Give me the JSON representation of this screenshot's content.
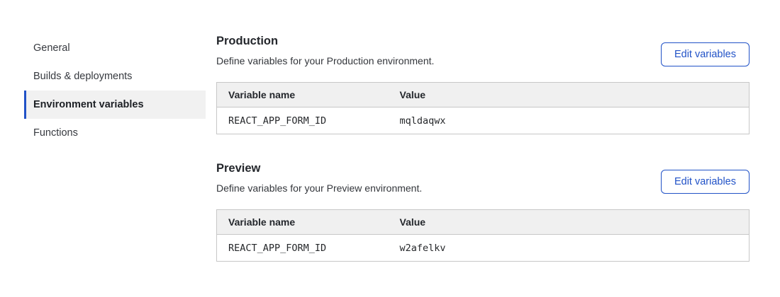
{
  "sidebar": {
    "items": [
      {
        "label": "General",
        "selected": false
      },
      {
        "label": "Builds & deployments",
        "selected": false
      },
      {
        "label": "Environment variables",
        "selected": true
      },
      {
        "label": "Functions",
        "selected": false
      }
    ]
  },
  "sections": [
    {
      "title": "Production",
      "description": "Define variables for your Production environment.",
      "button_label": "Edit variables",
      "table": {
        "columns": {
          "name": "Variable name",
          "value": "Value"
        },
        "rows": [
          {
            "name": "REACT_APP_FORM_ID",
            "value": "mqldaqwx"
          }
        ]
      }
    },
    {
      "title": "Preview",
      "description": "Define variables for your Preview environment.",
      "button_label": "Edit variables",
      "table": {
        "columns": {
          "name": "Variable name",
          "value": "Value"
        },
        "rows": [
          {
            "name": "REACT_APP_FORM_ID",
            "value": "w2afelkv"
          }
        ]
      }
    }
  ],
  "colors": {
    "accent_blue": "#2152c7",
    "selected_item_bg": "#f1f1f1",
    "table_header_bg": "#f0f0f0",
    "table_border": "#c7c7c7",
    "heading_text": "#24272c",
    "body_text": "#33363b"
  }
}
